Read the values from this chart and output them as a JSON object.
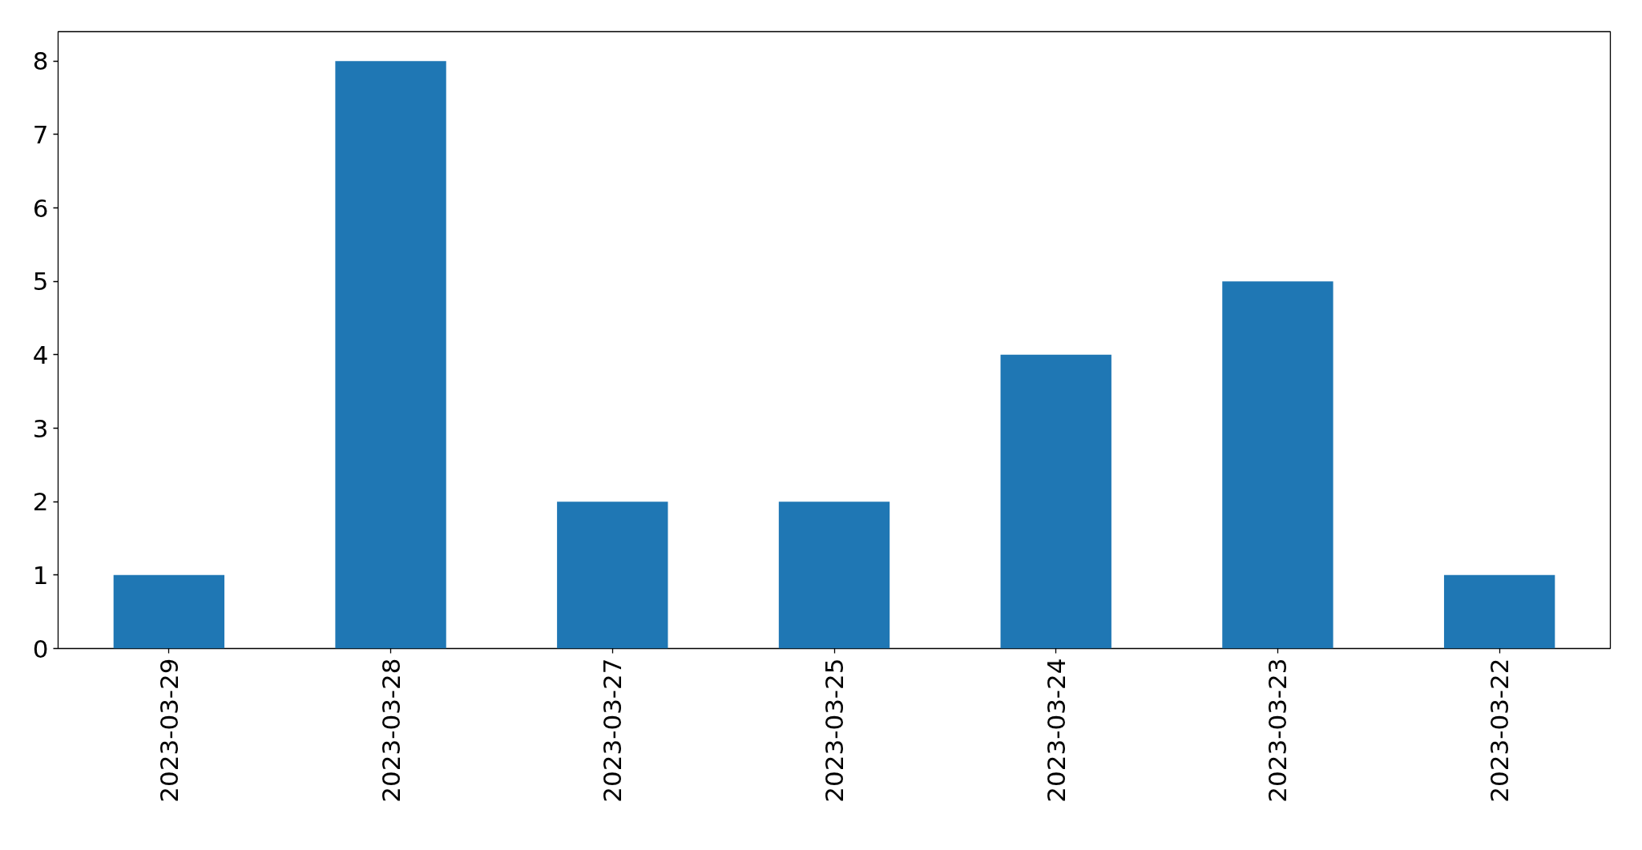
{
  "chart_data": {
    "type": "bar",
    "categories": [
      "2023-03-29",
      "2023-03-28",
      "2023-03-27",
      "2023-03-25",
      "2023-03-24",
      "2023-03-23",
      "2023-03-22"
    ],
    "values": [
      1,
      8,
      2,
      2,
      4,
      5,
      1
    ],
    "color": "#1f77b4",
    "ylim": [
      0,
      8.4
    ],
    "yticks": [
      0,
      1,
      2,
      3,
      4,
      5,
      6,
      7,
      8
    ],
    "grid": false,
    "legend": false
  }
}
